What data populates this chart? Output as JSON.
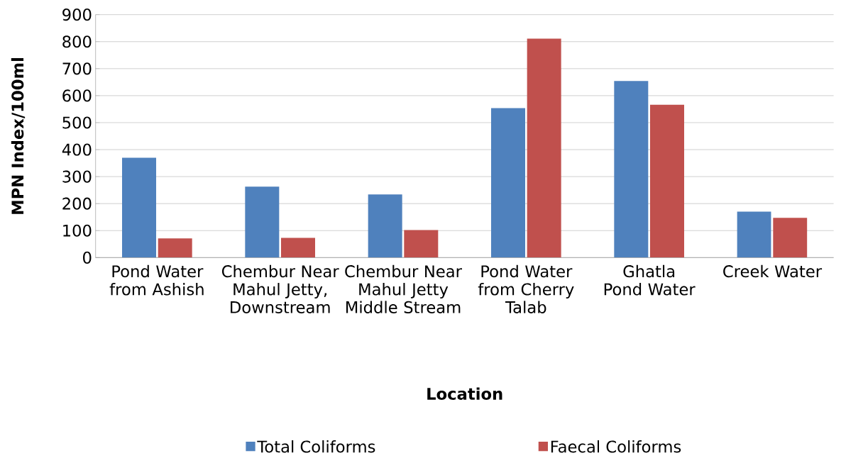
{
  "chart_data": {
    "type": "bar",
    "xlabel": "Location",
    "ylabel": "MPN Index/100ml",
    "categories": [
      "Pond Water from Ashish",
      "Chembur Near Mahul Jetty, Downstream",
      "Chembur Near Mahul Jetty Middle Stream",
      "Pond Water from Cherry Talab",
      "Ghatla Pond Water",
      "Creek Water"
    ],
    "series": [
      {
        "name": "Total Coliforms",
        "color": "#4f81bd",
        "values": [
          370,
          263,
          234,
          554,
          654,
          170
        ]
      },
      {
        "name": "Faecal Coliforms",
        "color": "#c0504d",
        "values": [
          71,
          73,
          102,
          811,
          566,
          147
        ]
      }
    ],
    "ylim": [
      0,
      900
    ],
    "yticks": [
      0,
      100,
      200,
      300,
      400,
      500,
      600,
      700,
      800,
      900
    ],
    "grid": "y",
    "legend": "bottom"
  }
}
